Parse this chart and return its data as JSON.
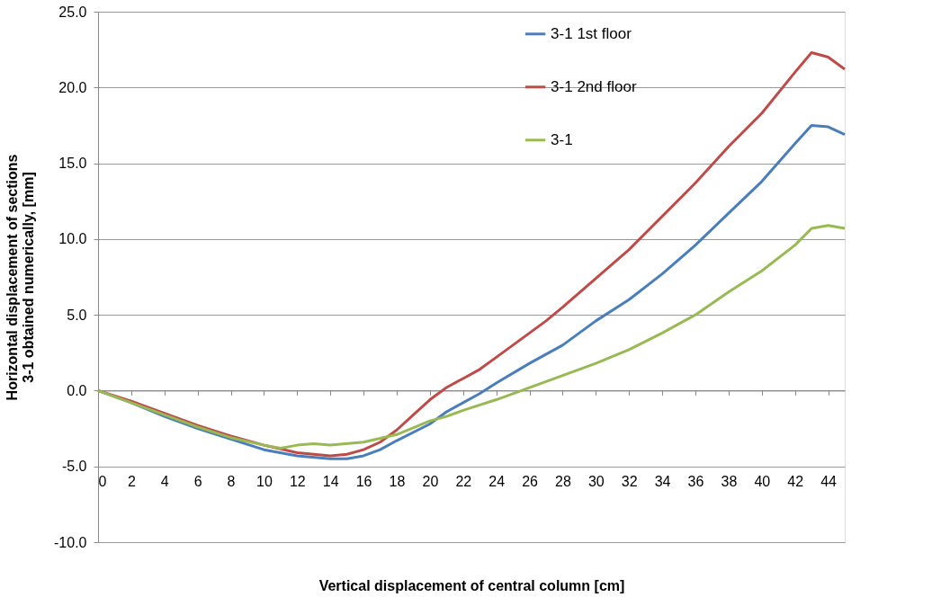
{
  "chart_data": {
    "type": "line",
    "xlabel": "Vertical displacement of central column [cm]",
    "ylabel": "Horizontal displacement of sections 3-1 obtained numerically, [mm]",
    "xlim": [
      0,
      45
    ],
    "xticks": [
      0,
      2,
      4,
      6,
      8,
      10,
      12,
      14,
      16,
      18,
      20,
      22,
      24,
      26,
      28,
      30,
      32,
      34,
      36,
      38,
      40,
      42,
      44
    ],
    "ylim": [
      -10,
      25
    ],
    "yticks": [
      {
        "value": -10,
        "label": "-10.0"
      },
      {
        "value": -5,
        "label": "-5.0"
      },
      {
        "value": 0,
        "label": "0.0"
      },
      {
        "value": 5,
        "label": "5.0"
      },
      {
        "value": 10,
        "label": "10.0"
      },
      {
        "value": 15,
        "label": "15.0"
      },
      {
        "value": 20,
        "label": "20.0"
      },
      {
        "value": 25,
        "label": "25.0"
      }
    ],
    "grid": "y",
    "legend": "top right",
    "marker": "none",
    "line_style": "solid",
    "series": [
      {
        "name": "3-1 1st floor",
        "color": "#4a7ebb",
        "x": [
          0,
          2,
          4,
          6,
          8,
          10,
          12,
          14,
          15,
          16,
          17,
          18,
          20,
          21,
          22,
          23,
          24,
          26,
          28,
          30,
          32,
          34,
          36,
          38,
          40,
          42,
          43,
          44,
          45
        ],
        "values": [
          0,
          -0.8,
          -1.7,
          -2.5,
          -3.2,
          -3.9,
          -4.3,
          -4.5,
          -4.5,
          -4.3,
          -3.9,
          -3.3,
          -2.2,
          -1.4,
          -0.8,
          -0.2,
          0.5,
          1.8,
          3.0,
          4.6,
          6.0,
          7.7,
          9.6,
          11.7,
          13.8,
          16.3,
          17.5,
          17.4,
          16.9
        ]
      },
      {
        "name": "3-1 2nd floor",
        "color": "#be4b48",
        "x": [
          0,
          2,
          4,
          6,
          8,
          10,
          12,
          14,
          15,
          16,
          17,
          18,
          19,
          20,
          21,
          22,
          23,
          24,
          26,
          27,
          28,
          30,
          32,
          34,
          36,
          38,
          40,
          42,
          43,
          44,
          45
        ],
        "values": [
          0,
          -0.7,
          -1.5,
          -2.3,
          -3.0,
          -3.6,
          -4.1,
          -4.3,
          -4.2,
          -3.9,
          -3.4,
          -2.6,
          -1.6,
          -0.6,
          0.2,
          0.8,
          1.4,
          2.2,
          3.8,
          4.6,
          5.5,
          7.4,
          9.3,
          11.5,
          13.7,
          16.1,
          18.3,
          21.0,
          22.3,
          22.0,
          21.2
        ]
      },
      {
        "name": "3-1",
        "color": "#98b954",
        "x": [
          0,
          2,
          4,
          6,
          8,
          10,
          11,
          12,
          13,
          14,
          16,
          18,
          20,
          21,
          22,
          24,
          26,
          27,
          28,
          30,
          32,
          34,
          36,
          38,
          40,
          42,
          43,
          44,
          45
        ],
        "values": [
          0,
          -0.8,
          -1.6,
          -2.4,
          -3.1,
          -3.6,
          -3.8,
          -3.6,
          -3.5,
          -3.6,
          -3.4,
          -2.9,
          -2.0,
          -1.7,
          -1.3,
          -0.6,
          0.2,
          0.6,
          1.0,
          1.8,
          2.7,
          3.8,
          5.0,
          6.5,
          7.9,
          9.6,
          10.7,
          10.9,
          10.7
        ]
      }
    ]
  }
}
